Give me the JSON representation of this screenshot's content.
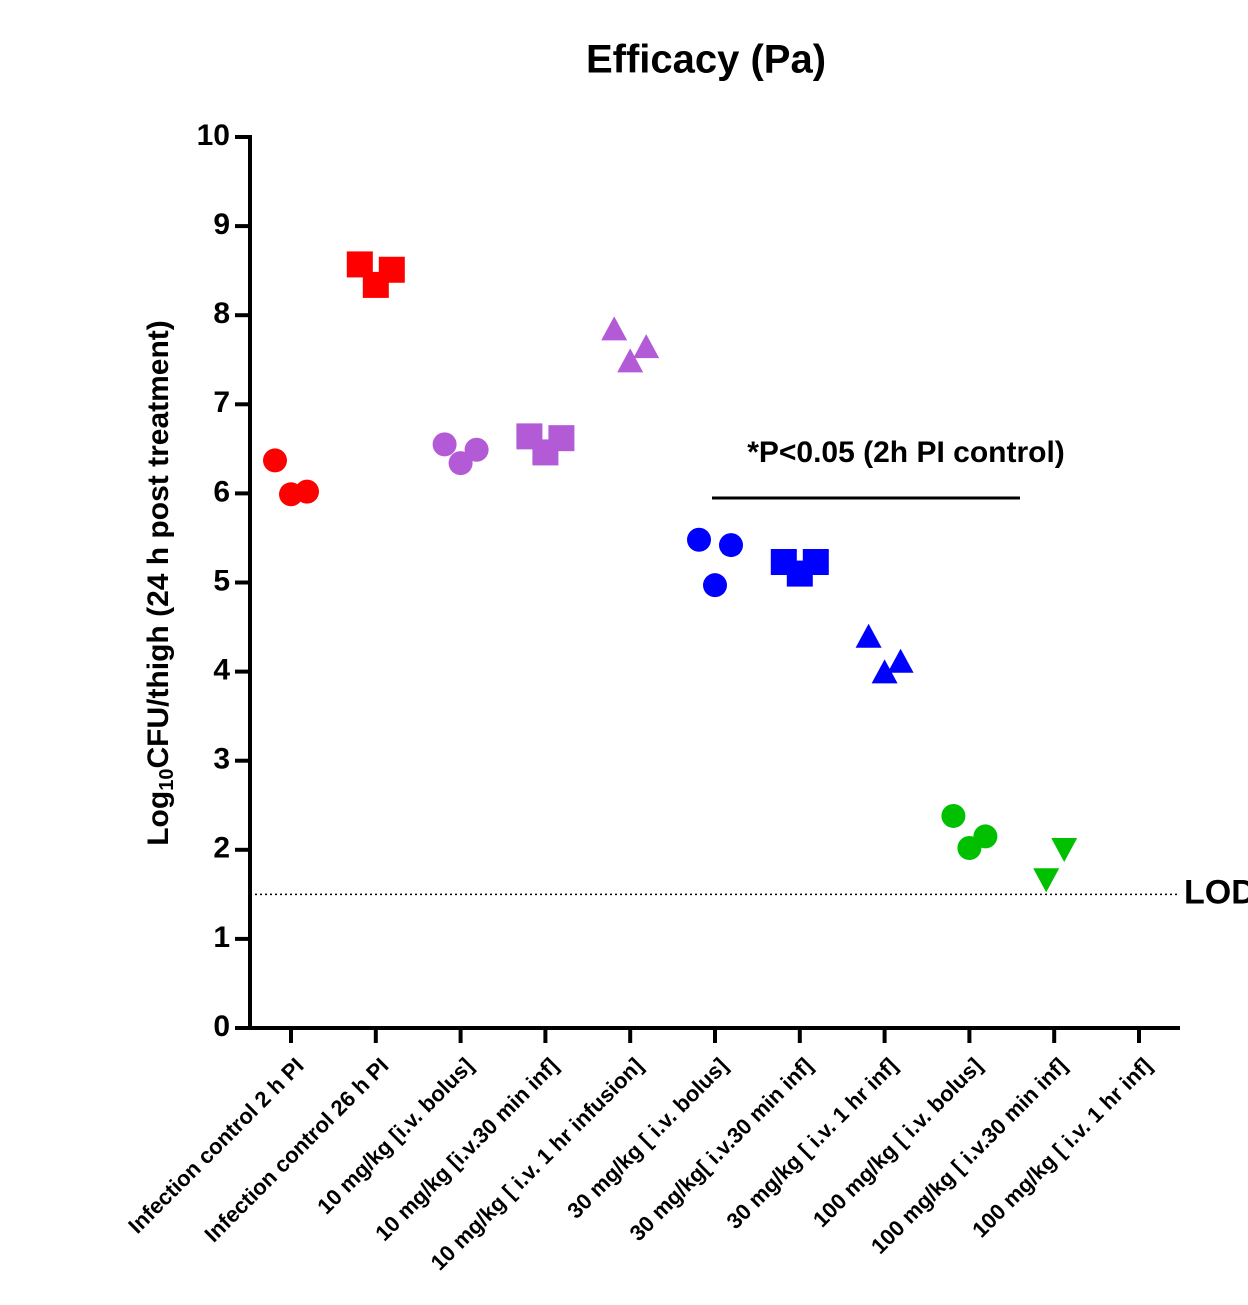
{
  "chart_data": {
    "type": "dotplot",
    "title": "Efficacy (Pa)",
    "ylabel": {
      "base": "Log",
      "sub": "10",
      "rest": "CFU/thigh (24 h post treatment)"
    },
    "categories": [
      "Infection control 2 h PI",
      "Infection control 26 h PI",
      "10 mg/kg  [i.v. bolus]",
      "10 mg/kg [i.v.30 min inf]",
      "10 mg/kg [ i.v. 1 hr infusion]",
      "30 mg/kg [ i.v. bolus]",
      "30 mg/kg[ i.v.30 min inf]",
      "30 mg/kg [ i.v. 1 hr inf]",
      "100 mg/kg [ i.v. bolus]",
      "100 mg/kg [ i.v.30 min inf]",
      "100 mg/kg [ i.v. 1 hr inf]"
    ],
    "groups": [
      {
        "color": "#ff0000",
        "marker": "circle",
        "values": [
          6.37,
          5.99,
          6.02
        ]
      },
      {
        "color": "#ff0000",
        "marker": "square",
        "values": [
          8.57,
          8.34,
          8.51
        ]
      },
      {
        "color": "#b35ad6",
        "marker": "circle",
        "values": [
          6.55,
          6.34,
          6.49
        ]
      },
      {
        "color": "#b35ad6",
        "marker": "square",
        "values": [
          6.64,
          6.46,
          6.62
        ]
      },
      {
        "color": "#b35ad6",
        "marker": "triangle",
        "values": [
          7.83,
          7.47,
          7.63
        ]
      },
      {
        "color": "#0000ff",
        "marker": "circle",
        "values": [
          5.48,
          4.97,
          5.42
        ]
      },
      {
        "color": "#0000ff",
        "marker": "square",
        "values": [
          5.23,
          5.1,
          5.23
        ]
      },
      {
        "color": "#0000ff",
        "marker": "triangle",
        "values": [
          4.38,
          3.98,
          4.1
        ]
      },
      {
        "color": "#00c000",
        "marker": "circle",
        "values": [
          2.38,
          2.02,
          2.15
        ]
      },
      {
        "color": "#00c000",
        "marker": "triangle-down",
        "values": [
          1.68,
          2.02
        ]
      },
      {
        "color": "#00c000",
        "marker": "triangle-down",
        "values": []
      }
    ],
    "ylim": [
      0,
      10
    ],
    "yticks": [
      0,
      1,
      2,
      3,
      4,
      5,
      6,
      7,
      8,
      9,
      10
    ],
    "lod": {
      "value": 1.5,
      "label": "LOD"
    },
    "annotation": "*P<0.05 (2h PI control)"
  }
}
